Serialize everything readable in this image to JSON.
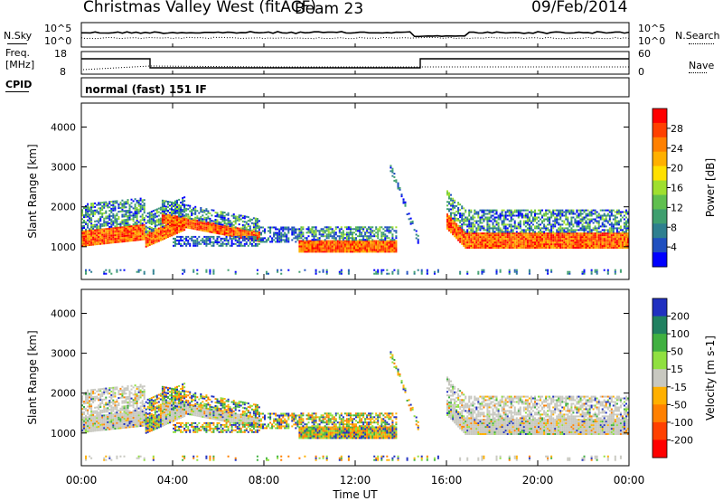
{
  "header": {
    "title": "Christmas Valley West (fitACF)",
    "beam": "Beam 23",
    "date": "09/Feb/2014"
  },
  "side_labels": {
    "nsky": "N.Sky",
    "nsearch": "N.Search",
    "freq": "Freq.",
    "freq_unit": "[MHz]",
    "nave": "Nave",
    "cpid": "CPID",
    "cpid_value": "normal (fast) 151 IF"
  },
  "noise_axis": {
    "left_ticks": [
      "10^5",
      "10^0"
    ],
    "right_ticks": [
      "10^5",
      "10^0"
    ]
  },
  "freq_axis": {
    "left_ticks": [
      "18",
      "8"
    ],
    "right_ticks": [
      "60",
      "0"
    ]
  },
  "chart_data": [
    {
      "type": "heatmap",
      "name": "power",
      "ylabel": "Slant Range [km]",
      "yticks": [
        1000,
        2000,
        3000,
        4000
      ],
      "ylim": [
        180,
        4600
      ],
      "colorbar": {
        "label": "Power [dB]",
        "ticks": [
          4,
          8,
          12,
          16,
          20,
          24,
          28
        ],
        "colors": [
          "#0000ff",
          "#1f4fbf",
          "#2e7f8f",
          "#3f9f6f",
          "#5fbf4f",
          "#9fdf2f",
          "#ffe000",
          "#ffb000",
          "#ff8000",
          "#ff4000",
          "#ff0000"
        ]
      }
    },
    {
      "type": "heatmap",
      "name": "velocity",
      "ylabel": "Slant Range [km]",
      "xlabel": "Time UT",
      "yticks": [
        1000,
        2000,
        3000,
        4000
      ],
      "ylim": [
        180,
        4600
      ],
      "colorbar": {
        "label": "Velocity [m s-1]",
        "ticks": [
          "200",
          "100",
          "50",
          "15",
          "-15",
          "-50",
          "-100",
          "-200"
        ],
        "colors": [
          "#2030c0",
          "#208060",
          "#40b040",
          "#90e040",
          "#c8c8c0",
          "#ffb000",
          "#ff8000",
          "#ff4000",
          "#ff0000"
        ]
      }
    }
  ],
  "time_axis": {
    "ticks": [
      "00:00",
      "04:00",
      "08:00",
      "12:00",
      "16:00",
      "20:00",
      "00:00"
    ],
    "xlabel": "Time UT"
  },
  "colors": {
    "power_low": "#0000ff",
    "power_high": "#ff0000",
    "ground_scatter": "#c8c8c0"
  }
}
